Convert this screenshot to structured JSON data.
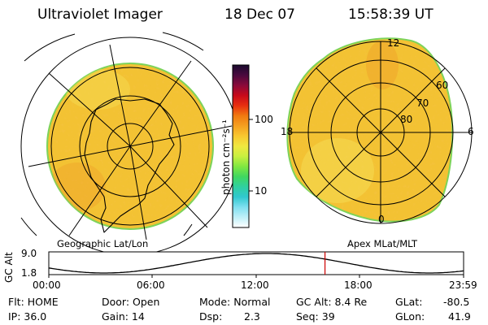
{
  "header": {
    "instrument": "Ultraviolet Imager",
    "date": "18 Dec 07",
    "time": "15:58:39 UT"
  },
  "colorbar": {
    "unit_label": "photon cm⁻²s⁻¹",
    "tick_labels": [
      "100",
      "10"
    ],
    "stops": [
      "#1a0a2e",
      "#4a0a3e",
      "#8a0a3a",
      "#c80a1a",
      "#e83010",
      "#f07a10",
      "#f5a020",
      "#f8c830",
      "#f0e840",
      "#c8f040",
      "#80e840",
      "#40d860",
      "#30d0a0",
      "#30c8d0",
      "#80e0f0",
      "#c0f0f8",
      "#ffffff"
    ]
  },
  "left_map": {
    "caption": "Geographic Lat/Lon",
    "fill_color": "#f3c233"
  },
  "right_map": {
    "caption": "Apex MLat/MLT",
    "fill_color": "#f3c233",
    "mlt_labels": {
      "top": "12",
      "left": "18",
      "right": "6",
      "bottom": "0"
    },
    "lat_labels": [
      "60",
      "70",
      "80"
    ]
  },
  "altitude_plot": {
    "ylabel": "GC Alt",
    "y_ticks": [
      "9.0",
      "1.8"
    ],
    "x_ticks": [
      "00:00",
      "06:00",
      "12:00",
      "18:00",
      "23:59"
    ],
    "current_time_hours": 15.98,
    "marker_color": "#cc0000"
  },
  "status": {
    "filter": "Flt: HOME",
    "ip": "IP: 36.0",
    "door": "Door: Open",
    "gain": "Gain: 14",
    "mode": "Mode: Normal",
    "dsp_label": "Dsp:",
    "dsp_value": "2.3",
    "gc_alt": "GC Alt: 8.4 Re",
    "seq": "Seq: 39",
    "glat_label": "GLat:",
    "glat_value": "-80.5",
    "glon_label": "GLon:",
    "glon_value": "41.9"
  }
}
